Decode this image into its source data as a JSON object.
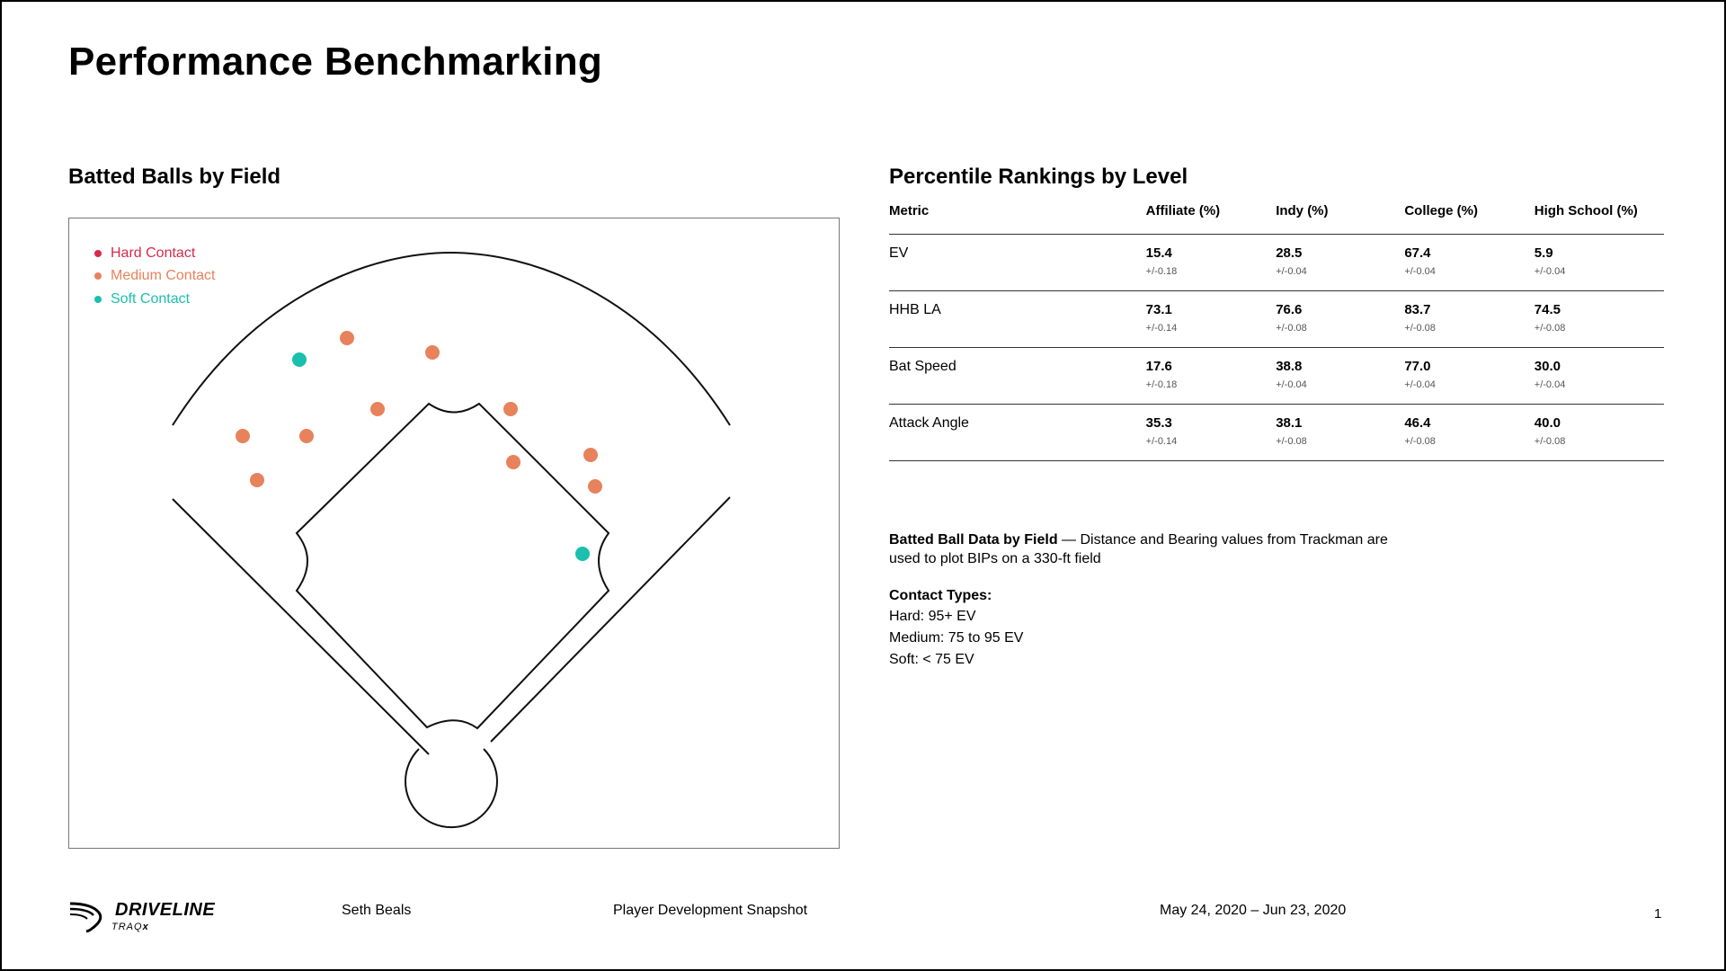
{
  "page": {
    "title": "Performance Benchmarking"
  },
  "field": {
    "title": "Batted Balls by Field",
    "legend": [
      {
        "label": "Hard Contact",
        "color": "#d62a4e"
      },
      {
        "label": "Medium Contact",
        "color": "#e8825c"
      },
      {
        "label": "Soft Contact",
        "color": "#1abfae"
      }
    ]
  },
  "rankings": {
    "title": "Percentile Rankings by Level",
    "columns": [
      "Metric",
      "Affiliate (%)",
      "Indy (%)",
      "College (%)",
      "High School (%)"
    ],
    "rows": [
      {
        "metric": "EV",
        "cells": [
          {
            "value": "15.4",
            "error": "+/-0.18"
          },
          {
            "value": "28.5",
            "error": "+/-0.04"
          },
          {
            "value": "67.4",
            "error": "+/-0.04"
          },
          {
            "value": "5.9",
            "error": "+/-0.04"
          }
        ]
      },
      {
        "metric": "HHB LA",
        "cells": [
          {
            "value": "73.1",
            "error": "+/-0.14"
          },
          {
            "value": "76.6",
            "error": "+/-0.08"
          },
          {
            "value": "83.7",
            "error": "+/-0.08"
          },
          {
            "value": "74.5",
            "error": "+/-0.08"
          }
        ]
      },
      {
        "metric": "Bat Speed",
        "cells": [
          {
            "value": "17.6",
            "error": "+/-0.18"
          },
          {
            "value": "38.8",
            "error": "+/-0.04"
          },
          {
            "value": "77.0",
            "error": "+/-0.04"
          },
          {
            "value": "30.0",
            "error": "+/-0.04"
          }
        ]
      },
      {
        "metric": "Attack Angle",
        "cells": [
          {
            "value": "35.3",
            "error": "+/-0.14"
          },
          {
            "value": "38.1",
            "error": "+/-0.08"
          },
          {
            "value": "46.4",
            "error": "+/-0.08"
          },
          {
            "value": "40.0",
            "error": "+/-0.08"
          }
        ]
      }
    ]
  },
  "notes": {
    "desc_title": "Batted Ball Data by Field",
    "desc_text": " — Distance and Bearing values from Trackman are used to plot BIPs on a 330-ft field",
    "contact_heading": "Contact Types:",
    "contact_lines": [
      "Hard: 95+ EV",
      "Medium: 75 to 95 EV",
      "Soft: < 75 EV"
    ]
  },
  "footer": {
    "logo_text": "DRIVELINE",
    "logo_sub_a": "TRAQ",
    "logo_sub_b": "x",
    "player": "Seth Beals",
    "report": "Player Development Snapshot",
    "dates": "May 24, 2020 – Jun 23, 2020",
    "page_number": "1"
  }
}
